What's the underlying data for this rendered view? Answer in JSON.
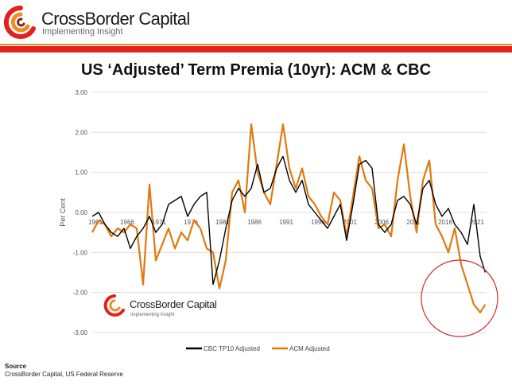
{
  "header": {
    "brand": "CrossBorder Capital",
    "tagline": "Implementing Insight",
    "colors": {
      "red": "#e3201b",
      "orange": "#f28c22"
    }
  },
  "source": {
    "label": "Source",
    "text": "CrossBorder Capital, US Federal Reserve"
  },
  "watermark": {
    "brand": "CrossBorder Capital",
    "tagline": "Implementing Insight"
  },
  "chart_data": {
    "type": "line",
    "title": "US ‘Adjusted’ Term Premia (10yr): ACM & CBC",
    "ylabel": "Per Cent",
    "ylim": [
      -3.0,
      3.0
    ],
    "xlim": [
      1961,
      2023
    ],
    "yticks": [
      "3.00",
      "2.00",
      "1.00",
      "0.00",
      "-1.00",
      "-2.00",
      "-3.00"
    ],
    "xticks": [
      {
        "label": "1961",
        "x": 1961
      },
      {
        "label": "1966",
        "x": 1966
      },
      {
        "label": "1971",
        "x": 1971
      },
      {
        "label": "1976",
        "x": 1976
      },
      {
        "label": "1981",
        "x": 1981
      },
      {
        "label": "1986",
        "x": 1986
      },
      {
        "label": "1991",
        "x": 1991
      },
      {
        "label": "1996",
        "x": 1996
      },
      {
        "label": "2001",
        "x": 2001
      },
      {
        "label": "2006",
        "x": 2006
      },
      {
        "label": "2011",
        "x": 2011
      },
      {
        "label": "2016",
        "x": 2016
      },
      {
        "label": "2021",
        "x": 2021
      }
    ],
    "grid": true,
    "legend_position": "bottom",
    "annotation": "red circle highlighting recent decline",
    "series": [
      {
        "name": "CBC TP10 Adjusted",
        "color": "#000000",
        "x": [
          1961,
          1962,
          1963,
          1964,
          1965,
          1966,
          1967,
          1968,
          1969,
          1970,
          1971,
          1972,
          1973,
          1974,
          1975,
          1976,
          1977,
          1978,
          1979,
          1980,
          1981,
          1982,
          1983,
          1984,
          1985,
          1986,
          1987,
          1988,
          1989,
          1990,
          1991,
          1992,
          1993,
          1994,
          1995,
          1996,
          1997,
          1998,
          1999,
          2000,
          2001,
          2002,
          2003,
          2004,
          2005,
          2006,
          2007,
          2008,
          2009,
          2010,
          2011,
          2012,
          2013,
          2014,
          2015,
          2016,
          2017,
          2018,
          2019,
          2020,
          2021,
          2022,
          2022.8
        ],
        "y": [
          -0.1,
          0.0,
          -0.3,
          -0.5,
          -0.6,
          -0.4,
          -0.9,
          -0.6,
          -0.4,
          -0.1,
          -0.5,
          -0.3,
          0.2,
          0.3,
          0.4,
          -0.1,
          0.2,
          0.4,
          0.5,
          -1.8,
          -1.2,
          -0.4,
          0.3,
          0.6,
          0.4,
          0.6,
          1.2,
          0.5,
          0.6,
          1.1,
          1.4,
          0.8,
          0.5,
          0.8,
          0.2,
          0.0,
          -0.2,
          -0.4,
          -0.1,
          0.2,
          -0.7,
          0.2,
          1.2,
          1.3,
          1.1,
          -0.3,
          -0.5,
          -0.3,
          0.3,
          0.4,
          0.2,
          -0.3,
          0.6,
          0.8,
          0.2,
          -0.1,
          0.1,
          -0.3,
          -0.5,
          -0.8,
          0.2,
          -1.1,
          -1.5
        ]
      },
      {
        "name": "ACM Adjusted",
        "color": "#e27810",
        "x": [
          1961,
          1962,
          1963,
          1964,
          1965,
          1966,
          1967,
          1968,
          1969,
          1970,
          1971,
          1972,
          1973,
          1974,
          1975,
          1976,
          1977,
          1978,
          1979,
          1980,
          1981,
          1982,
          1983,
          1984,
          1985,
          1986,
          1987,
          1988,
          1989,
          1990,
          1991,
          1992,
          1993,
          1994,
          1995,
          1996,
          1997,
          1998,
          1999,
          2000,
          2001,
          2002,
          2003,
          2004,
          2005,
          2006,
          2007,
          2008,
          2009,
          2010,
          2011,
          2012,
          2013,
          2014,
          2015,
          2016,
          2017,
          2018,
          2019,
          2020,
          2021,
          2022,
          2022.8
        ],
        "y": [
          -0.5,
          -0.2,
          -0.3,
          -0.6,
          -0.4,
          -0.5,
          -0.3,
          -0.4,
          -1.8,
          0.7,
          -1.2,
          -0.8,
          -0.4,
          -0.9,
          -0.5,
          -0.7,
          -0.2,
          -0.4,
          -0.9,
          -1.0,
          -1.9,
          -1.2,
          0.5,
          0.8,
          0.0,
          2.2,
          1.0,
          0.5,
          0.2,
          1.2,
          2.2,
          1.1,
          0.6,
          1.1,
          0.4,
          0.2,
          -0.1,
          -0.3,
          0.5,
          0.3,
          -0.6,
          0.4,
          1.4,
          0.8,
          0.6,
          -0.4,
          -0.3,
          -0.6,
          0.8,
          1.7,
          0.4,
          -0.5,
          0.8,
          1.3,
          -0.3,
          -0.6,
          -1.0,
          -0.4,
          -1.3,
          -1.8,
          -2.3,
          -2.5,
          -2.3
        ]
      }
    ]
  }
}
